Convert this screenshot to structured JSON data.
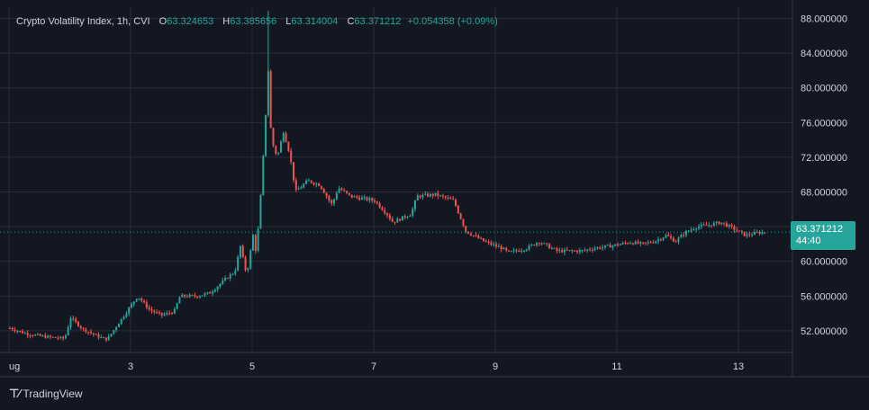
{
  "legend": {
    "title": "Crypto Volatility Index, 1h, CVI",
    "open_label": "O",
    "open": "63.324653",
    "high_label": "H",
    "high": "63.385656",
    "low_label": "L",
    "low": "63.314004",
    "close_label": "C",
    "close": "63.371212",
    "change": "+0.054358 (+0.09%)"
  },
  "price_tag": {
    "price": "63.371212",
    "countdown": "44:40"
  },
  "footer": {
    "brand": "TradingView",
    "icon": "tradingview-logo-icon"
  },
  "colors": {
    "background": "#131722",
    "up": "#26a69a",
    "down": "#ef5350",
    "grid": "#2a2e39",
    "text": "#d1d4dc"
  },
  "chart_data": {
    "type": "candlestick",
    "title": "Crypto Volatility Index, 1h, CVI",
    "ylim": [
      49.5,
      89.3
    ],
    "y_ticks": [
      "52.000000",
      "56.000000",
      "60.000000",
      "64.000000",
      "68.000000",
      "72.000000",
      "76.000000",
      "80.000000",
      "84.000000",
      "88.000000"
    ],
    "x_ticks": [
      {
        "label": "ug",
        "day": 1
      },
      {
        "label": "3",
        "day": 3
      },
      {
        "label": "5",
        "day": 5
      },
      {
        "label": "7",
        "day": 7
      },
      {
        "label": "9",
        "day": 9
      },
      {
        "label": "11",
        "day": 11
      },
      {
        "label": "13",
        "day": 13
      }
    ],
    "xlim_days": [
      1.0,
      14.95
    ],
    "last_price": 63.371212,
    "grid": true,
    "price_path": [
      [
        1.0,
        52.3
      ],
      [
        1.3,
        51.6
      ],
      [
        1.6,
        51.3
      ],
      [
        1.9,
        51.1
      ],
      [
        2.0,
        53.5
      ],
      [
        2.2,
        52.2
      ],
      [
        2.5,
        51.2
      ],
      [
        2.6,
        51.0
      ],
      [
        2.8,
        53.0
      ],
      [
        3.0,
        55.0
      ],
      [
        3.1,
        56.0
      ],
      [
        3.3,
        54.4
      ],
      [
        3.5,
        53.8
      ],
      [
        3.7,
        54.2
      ],
      [
        3.8,
        56.0
      ],
      [
        4.1,
        56.0
      ],
      [
        4.3,
        56.4
      ],
      [
        4.6,
        58.3
      ],
      [
        4.7,
        58.8
      ],
      [
        4.8,
        62.0
      ],
      [
        4.85,
        59.5
      ],
      [
        4.9,
        58.6
      ],
      [
        5.0,
        63.0
      ],
      [
        5.05,
        61.0
      ],
      [
        5.1,
        65.0
      ],
      [
        5.15,
        70.0
      ],
      [
        5.25,
        82.0
      ],
      [
        5.3,
        74.0
      ],
      [
        5.4,
        72.0
      ],
      [
        5.5,
        75.0
      ],
      [
        5.6,
        72.5
      ],
      [
        5.7,
        68.0
      ],
      [
        5.9,
        69.3
      ],
      [
        6.1,
        68.8
      ],
      [
        6.3,
        66.5
      ],
      [
        6.4,
        68.5
      ],
      [
        6.6,
        67.5
      ],
      [
        7.0,
        67.0
      ],
      [
        7.2,
        65.5
      ],
      [
        7.3,
        64.5
      ],
      [
        7.6,
        65.5
      ],
      [
        7.7,
        67.5
      ],
      [
        8.0,
        67.7
      ],
      [
        8.3,
        67.0
      ],
      [
        8.5,
        63.5
      ],
      [
        8.8,
        62.3
      ],
      [
        9.1,
        61.5
      ],
      [
        9.2,
        61.0
      ],
      [
        9.5,
        61.5
      ],
      [
        9.7,
        62.3
      ],
      [
        10.0,
        61.2
      ],
      [
        10.4,
        61.2
      ],
      [
        10.6,
        61.5
      ],
      [
        10.9,
        61.8
      ],
      [
        11.2,
        62.2
      ],
      [
        11.4,
        62.0
      ],
      [
        11.6,
        62.3
      ],
      [
        11.8,
        63.0
      ],
      [
        11.95,
        62.3
      ],
      [
        12.1,
        63.3
      ],
      [
        12.3,
        64.0
      ],
      [
        12.5,
        64.2
      ],
      [
        12.7,
        64.5
      ],
      [
        12.9,
        63.8
      ],
      [
        13.1,
        63.0
      ],
      [
        13.3,
        63.3
      ],
      [
        13.45,
        63.371212
      ]
    ]
  }
}
